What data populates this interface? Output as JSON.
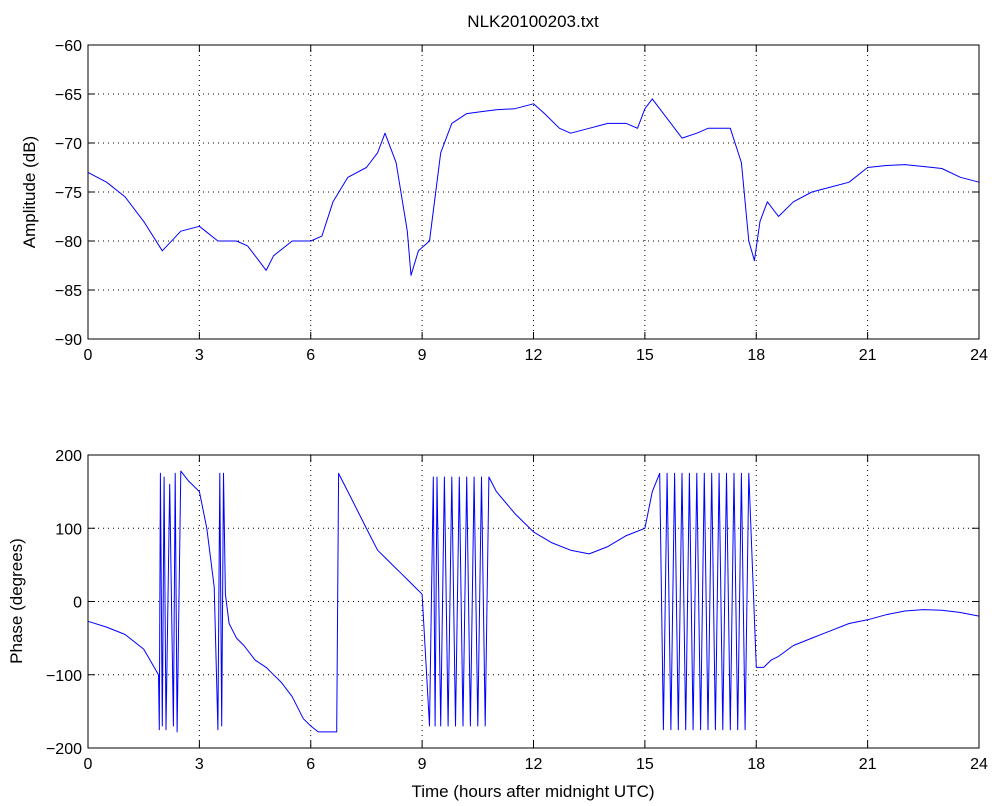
{
  "chart_data": [
    {
      "type": "line",
      "title": "NLK20100203.txt",
      "xlabel": "",
      "ylabel": "Amplitude (dB)",
      "xlim": [
        0,
        24
      ],
      "ylim": [
        -90,
        -60
      ],
      "xticks": [
        0,
        3,
        6,
        9,
        12,
        15,
        18,
        21,
        24
      ],
      "yticks": [
        -90,
        -85,
        -80,
        -75,
        -70,
        -65,
        -60
      ],
      "grid": "dotted",
      "color": "#0000ff",
      "series": [
        {
          "x": [
            0,
            0.5,
            1.0,
            1.5,
            2.0,
            2.5,
            3.0,
            3.5,
            4.0,
            4.3,
            4.6,
            4.8,
            5.0,
            5.5,
            6.0,
            6.3,
            6.6,
            7.0,
            7.5,
            7.8,
            8.0,
            8.3,
            8.6,
            8.7,
            8.9,
            9.2,
            9.5,
            9.8,
            10.2,
            10.6,
            11.0,
            11.5,
            12.0,
            12.3,
            12.7,
            13.0,
            13.5,
            14.0,
            14.5,
            14.8,
            15.0,
            15.2,
            15.5,
            15.8,
            16.0,
            16.4,
            16.7,
            17.0,
            17.3,
            17.6,
            17.8,
            17.95,
            18.1,
            18.3,
            18.6,
            19.0,
            19.5,
            20.0,
            20.5,
            21.0,
            21.5,
            22.0,
            22.5,
            23.0,
            23.5,
            24.0
          ],
          "y": [
            -73,
            -74,
            -75.5,
            -78,
            -81,
            -79,
            -78.5,
            -80,
            -80,
            -80.5,
            -82,
            -83,
            -81.5,
            -80,
            -80,
            -79.5,
            -76,
            -73.5,
            -72.5,
            -71,
            -69,
            -72,
            -79,
            -83.5,
            -81,
            -80,
            -71,
            -68,
            -67,
            -66.8,
            -66.6,
            -66.5,
            -66,
            -67,
            -68.5,
            -69,
            -68.5,
            -68,
            -68,
            -68.5,
            -66.5,
            -65.5,
            -67,
            -68.5,
            -69.5,
            -69,
            -68.5,
            -68.5,
            -68.5,
            -72,
            -80,
            -82,
            -78,
            -76,
            -77.5,
            -76,
            -75,
            -74.5,
            -74,
            -72.5,
            -72.3,
            -72.2,
            -72.4,
            -72.6,
            -73.5,
            -74
          ]
        }
      ]
    },
    {
      "type": "line",
      "title": "",
      "xlabel": "Time (hours after midnight UTC)",
      "ylabel": "Phase (degrees)",
      "xlim": [
        0,
        24
      ],
      "ylim": [
        -200,
        200
      ],
      "xticks": [
        0,
        3,
        6,
        9,
        12,
        15,
        18,
        21,
        24
      ],
      "yticks": [
        -200,
        -100,
        0,
        100,
        200
      ],
      "grid": "dotted",
      "color": "#0000ff",
      "series": [
        {
          "x": [
            0,
            0.5,
            1.0,
            1.5,
            1.9,
            1.92,
            1.95,
            2.0,
            2.05,
            2.1,
            2.2,
            2.3,
            2.35,
            2.4,
            2.5,
            2.7,
            3.0,
            3.2,
            3.4,
            3.5,
            3.55,
            3.6,
            3.65,
            3.7,
            3.8,
            4.0,
            4.2,
            4.5,
            4.8,
            5.0,
            5.2,
            5.5,
            5.8,
            6.0,
            6.2,
            6.4,
            6.6,
            6.7,
            6.75,
            6.8,
            7.0,
            7.3,
            7.6,
            7.8,
            8.0,
            8.2,
            8.4,
            8.6,
            8.8,
            9.0,
            9.2,
            9.3,
            9.35,
            9.4,
            9.5,
            9.6,
            9.7,
            9.8,
            9.9,
            10.0,
            10.1,
            10.2,
            10.3,
            10.4,
            10.5,
            10.6,
            10.7,
            10.8,
            11.0,
            11.5,
            12.0,
            12.5,
            13.0,
            13.5,
            14.0,
            14.5,
            15.0,
            15.2,
            15.4,
            15.5,
            15.6,
            15.7,
            15.8,
            15.9,
            16.0,
            16.1,
            16.2,
            16.3,
            16.4,
            16.5,
            16.6,
            16.7,
            16.8,
            16.9,
            17.0,
            17.1,
            17.2,
            17.3,
            17.4,
            17.5,
            17.6,
            17.7,
            17.8,
            18.0,
            18.2,
            18.4,
            18.6,
            19.0,
            19.5,
            20.0,
            20.5,
            21.0,
            21.5,
            22.0,
            22.5,
            23.0,
            23.5,
            24.0
          ],
          "y": [
            -27,
            -35,
            -45,
            -65,
            -100,
            -175,
            175,
            -170,
            170,
            -175,
            160,
            -170,
            175,
            -178,
            178,
            165,
            150,
            100,
            20,
            -175,
            175,
            -170,
            175,
            10,
            -30,
            -50,
            -60,
            -80,
            -90,
            -100,
            -110,
            -130,
            -160,
            -170,
            -178,
            -178,
            -178,
            -178,
            175,
            170,
            150,
            120,
            90,
            70,
            60,
            50,
            40,
            30,
            20,
            10,
            -170,
            170,
            -170,
            170,
            -170,
            170,
            -170,
            170,
            -170,
            170,
            -170,
            170,
            -170,
            170,
            -170,
            170,
            -170,
            170,
            150,
            120,
            95,
            80,
            70,
            65,
            75,
            90,
            100,
            150,
            175,
            -175,
            175,
            -175,
            175,
            -175,
            175,
            -175,
            175,
            -175,
            175,
            -175,
            175,
            -175,
            175,
            -175,
            175,
            -175,
            175,
            -175,
            175,
            -175,
            175,
            -175,
            175,
            -90,
            -90,
            -80,
            -75,
            -60,
            -50,
            -40,
            -30,
            -25,
            -18,
            -13,
            -11,
            -12,
            -15,
            -20
          ]
        }
      ]
    }
  ]
}
